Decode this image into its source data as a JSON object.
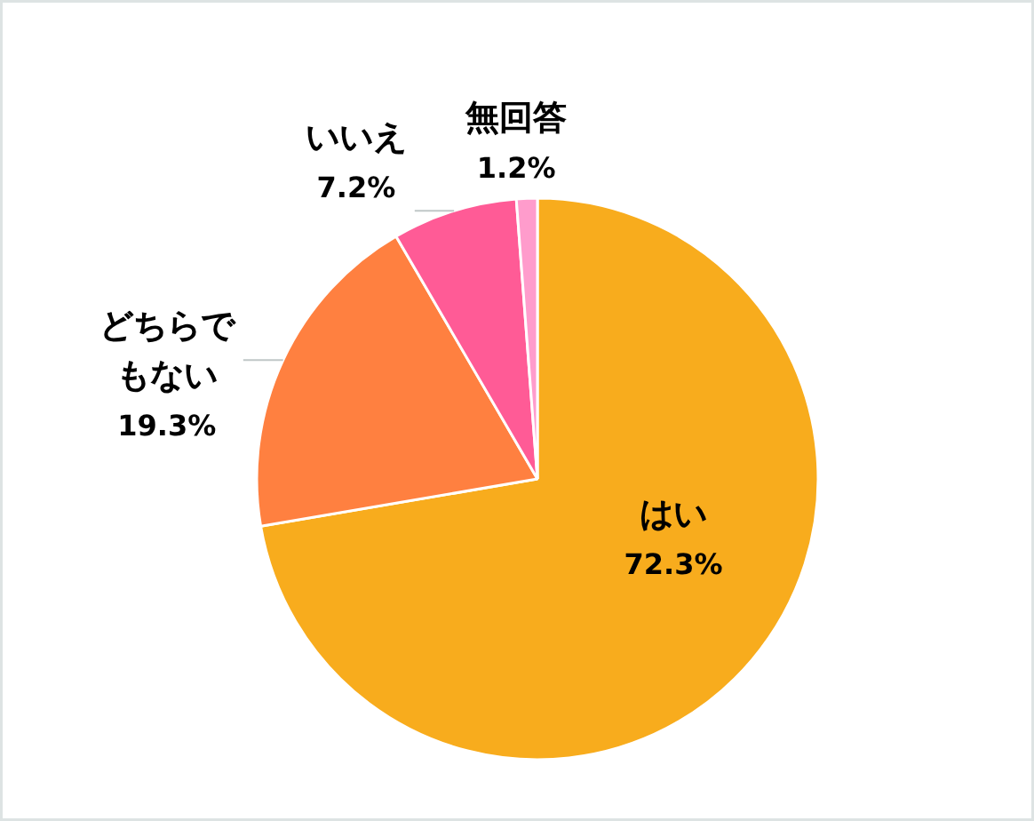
{
  "chart_data": {
    "type": "pie",
    "categories": [
      "はい",
      "どちらでもない",
      "いいえ",
      "無回答"
    ],
    "values": [
      72.3,
      19.3,
      7.2,
      1.2
    ],
    "value_labels": [
      "72.3%",
      "19.3%",
      "7.2%",
      "1.2%"
    ],
    "colors": [
      "#f8ac1d",
      "#ff8040",
      "#ff5b96",
      "#ff9ccc"
    ]
  }
}
